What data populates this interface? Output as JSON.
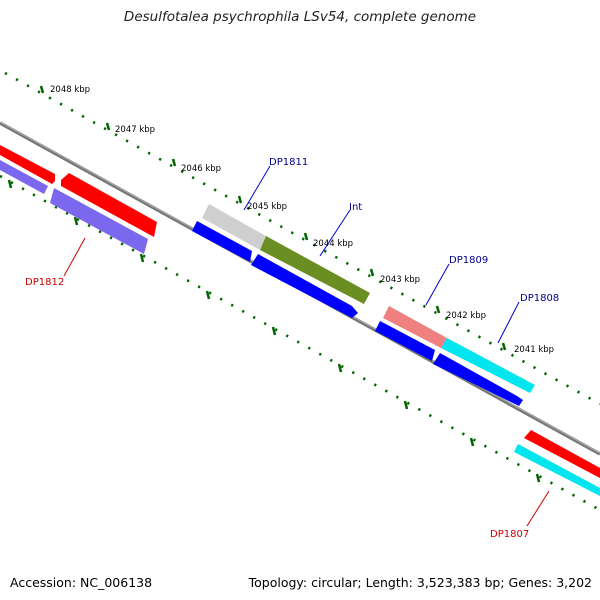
{
  "title": "Desulfotalea psychrophila LSv54, complete genome",
  "footer": {
    "accession": "Accession: NC_006138",
    "topology": "Topology: circular; Length: 3,523,383 bp; Genes: 3,202"
  },
  "ticks": [
    {
      "kbp": 2048,
      "label": "2048 kbp"
    },
    {
      "kbp": 2047,
      "label": "2047 kbp"
    },
    {
      "kbp": 2046,
      "label": "2046 kbp"
    },
    {
      "kbp": 2045,
      "label": "2045 kbp"
    },
    {
      "kbp": 2044,
      "label": "2044 kbp"
    },
    {
      "kbp": 2043,
      "label": "2043 kbp"
    },
    {
      "kbp": 2042,
      "label": "2042 kbp"
    },
    {
      "kbp": 2041,
      "label": "2041 kbp"
    }
  ],
  "gene_labels": [
    {
      "id": "DP1811",
      "text": "DP1811",
      "color": "#00008b"
    },
    {
      "id": "Int",
      "text": "Int",
      "color": "#00008b"
    },
    {
      "id": "DP1809",
      "text": "DP1809",
      "color": "#00008b"
    },
    {
      "id": "DP1808",
      "text": "DP1808",
      "color": "#00008b"
    },
    {
      "id": "DP1812",
      "text": "DP1812",
      "color": "#cc0000"
    },
    {
      "id": "DP1807",
      "text": "DP1807",
      "color": "#cc0000"
    }
  ],
  "feature_colors": {
    "cds_red": "#ff0000",
    "cds_gray": "#c8c8c8",
    "cds_olive": "#6b8e23",
    "cds_pink": "#f08080",
    "cds_cyan": "#00e5ee",
    "orf_blue": "#0000ff",
    "orf_purple": "#7b68ee",
    "backbone": "#808080",
    "tick_green": "#006400"
  }
}
